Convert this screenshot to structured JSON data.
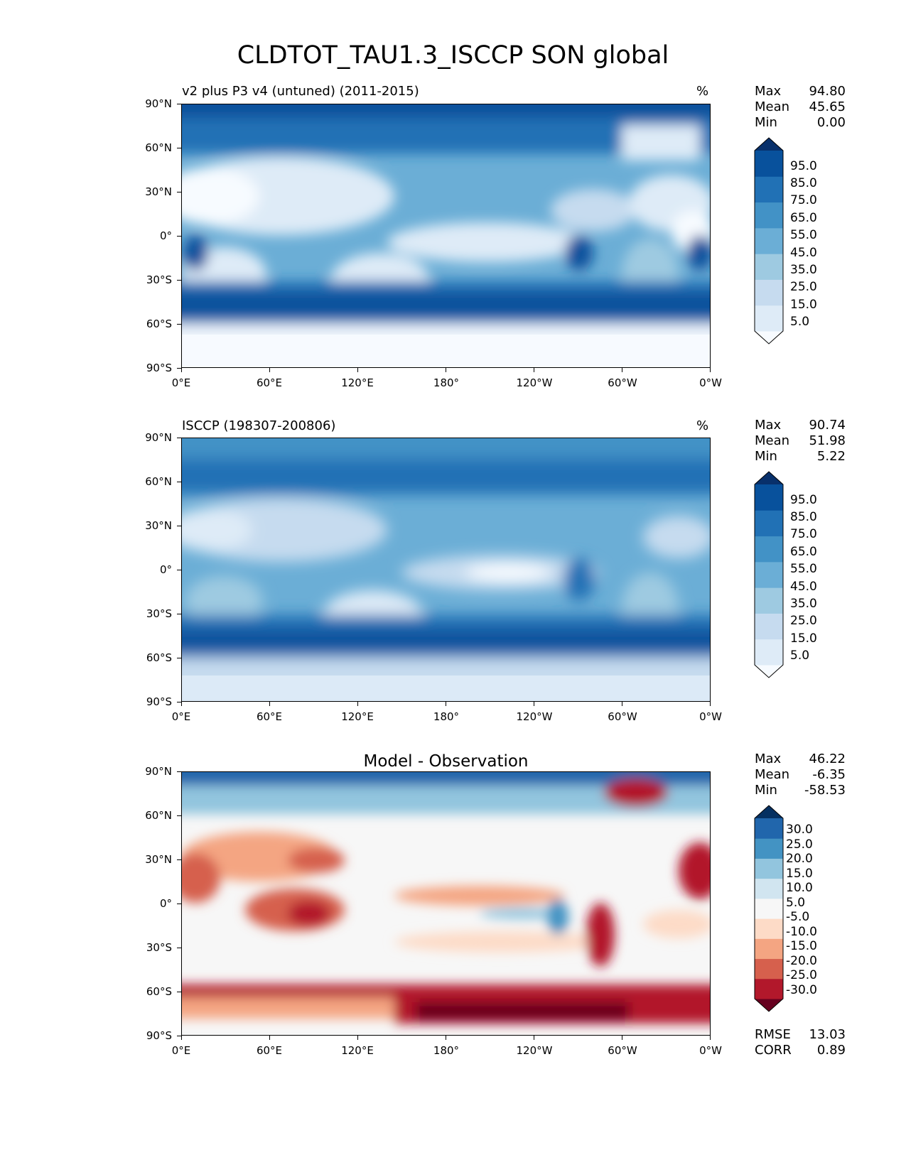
{
  "figure_title": "CLDTOT_TAU1.3_ISCCP SON global",
  "axes": {
    "y_ticks": [
      "90°N",
      "60°N",
      "30°N",
      "0°",
      "30°S",
      "60°S",
      "90°S"
    ],
    "x_ticks": [
      "0°E",
      "60°E",
      "120°E",
      "180°",
      "120°W",
      "60°W",
      "0°W"
    ]
  },
  "panels": [
    {
      "title_left": "v2 plus P3 v4 (untuned) (2011-2015)",
      "title_right": "%",
      "stats": [
        {
          "label": "Max",
          "value": "94.80"
        },
        {
          "label": "Mean",
          "value": "45.65"
        },
        {
          "label": "Min",
          "value": "0.00"
        }
      ],
      "colorbar": {
        "colors": [
          "#f7fbff",
          "#deebf7",
          "#c6dbef",
          "#9ecae1",
          "#6baed6",
          "#4292c6",
          "#2171b5",
          "#08519c",
          "#08306b"
        ],
        "labels": [
          "95.0",
          "85.0",
          "75.0",
          "65.0",
          "55.0",
          "45.0",
          "35.0",
          "25.0",
          "15.0",
          "5.0"
        ]
      }
    },
    {
      "title_left": "ISCCP (198307-200806)",
      "title_right": "%",
      "stats": [
        {
          "label": "Max",
          "value": "90.74"
        },
        {
          "label": "Mean",
          "value": "51.98"
        },
        {
          "label": "Min",
          "value": "5.22"
        }
      ],
      "colorbar": {
        "colors": [
          "#f7fbff",
          "#deebf7",
          "#c6dbef",
          "#9ecae1",
          "#6baed6",
          "#4292c6",
          "#2171b5",
          "#08519c",
          "#08306b"
        ],
        "labels": [
          "95.0",
          "85.0",
          "75.0",
          "65.0",
          "55.0",
          "45.0",
          "35.0",
          "25.0",
          "15.0",
          "5.0"
        ]
      }
    },
    {
      "title_center": "Model - Observation",
      "stats": [
        {
          "label": "Max",
          "value": "46.22"
        },
        {
          "label": "Mean",
          "value": "-6.35"
        },
        {
          "label": "Min",
          "value": "-58.53"
        }
      ],
      "extra_stats": [
        {
          "label": "RMSE",
          "value": "13.03"
        },
        {
          "label": "CORR",
          "value": "0.89"
        }
      ],
      "colorbar": {
        "colors": [
          "#67001f",
          "#b2182b",
          "#d6604d",
          "#f4a582",
          "#fddbc7",
          "#f7f7f7",
          "#d1e5f0",
          "#92c5de",
          "#4393c3",
          "#2166ac",
          "#053061"
        ],
        "labels": [
          "30.0",
          "25.0",
          "20.0",
          "15.0",
          "10.0",
          "5.0",
          "-5.0",
          "-10.0",
          "-15.0",
          "-20.0",
          "-25.0",
          "-30.0"
        ]
      }
    }
  ]
}
